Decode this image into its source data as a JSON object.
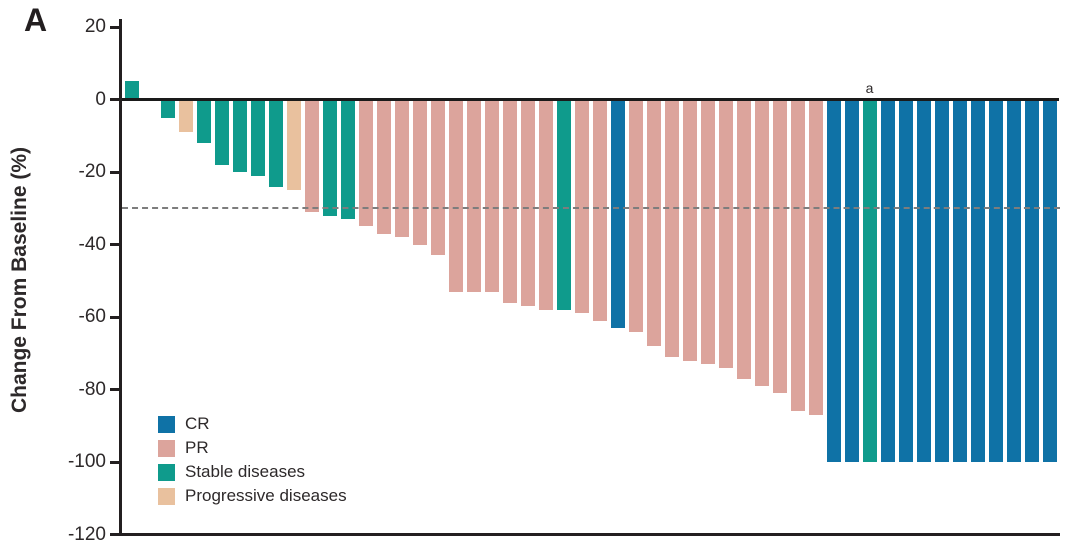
{
  "panel_label": "A",
  "chart_data": {
    "type": "bar",
    "subtype": "waterfall",
    "title": "",
    "xlabel": "",
    "ylabel": "Change From Baseline (%)",
    "ylim": [
      -120,
      20
    ],
    "yticks": [
      20,
      0,
      -20,
      -40,
      -60,
      -80,
      -100,
      -120
    ],
    "grid": false,
    "legend_position": "lower-left",
    "legend": [
      {
        "key": "CR",
        "label": "CR",
        "color": "#0f72a6"
      },
      {
        "key": "PR",
        "label": "PR",
        "color": "#dca49c"
      },
      {
        "key": "SD",
        "label": "Stable diseases",
        "color": "#0f9b8c"
      },
      {
        "key": "PD",
        "label": "Progressive diseases",
        "color": "#e9c19e"
      }
    ],
    "reference_lines": [
      {
        "y": 0,
        "style": "solid",
        "color": "#1a1a1a"
      },
      {
        "y": -30,
        "style": "dashed",
        "color": "#7d7d7d"
      }
    ],
    "annotations": [
      {
        "text": "a",
        "bar_index": 41
      }
    ],
    "bars": [
      {
        "value": 5,
        "category": "SD"
      },
      {
        "value": 0,
        "category": "SD"
      },
      {
        "value": -5,
        "category": "SD"
      },
      {
        "value": -9,
        "category": "PD"
      },
      {
        "value": -12,
        "category": "SD"
      },
      {
        "value": -18,
        "category": "SD"
      },
      {
        "value": -20,
        "category": "SD"
      },
      {
        "value": -21,
        "category": "SD"
      },
      {
        "value": -24,
        "category": "SD"
      },
      {
        "value": -25,
        "category": "PD"
      },
      {
        "value": -31,
        "category": "PR"
      },
      {
        "value": -32,
        "category": "SD"
      },
      {
        "value": -33,
        "category": "SD"
      },
      {
        "value": -35,
        "category": "PR"
      },
      {
        "value": -37,
        "category": "PR"
      },
      {
        "value": -38,
        "category": "PR"
      },
      {
        "value": -40,
        "category": "PR"
      },
      {
        "value": -43,
        "category": "PR"
      },
      {
        "value": -53,
        "category": "PR"
      },
      {
        "value": -53,
        "category": "PR"
      },
      {
        "value": -53,
        "category": "PR"
      },
      {
        "value": -56,
        "category": "PR"
      },
      {
        "value": -57,
        "category": "PR"
      },
      {
        "value": -58,
        "category": "PR"
      },
      {
        "value": -58,
        "category": "SD"
      },
      {
        "value": -59,
        "category": "PR"
      },
      {
        "value": -61,
        "category": "PR"
      },
      {
        "value": -63,
        "category": "CR"
      },
      {
        "value": -64,
        "category": "PR"
      },
      {
        "value": -68,
        "category": "PR"
      },
      {
        "value": -71,
        "category": "PR"
      },
      {
        "value": -72,
        "category": "PR"
      },
      {
        "value": -73,
        "category": "PR"
      },
      {
        "value": -74,
        "category": "PR"
      },
      {
        "value": -77,
        "category": "PR"
      },
      {
        "value": -79,
        "category": "PR"
      },
      {
        "value": -81,
        "category": "PR"
      },
      {
        "value": -86,
        "category": "PR"
      },
      {
        "value": -87,
        "category": "PR"
      },
      {
        "value": -100,
        "category": "CR"
      },
      {
        "value": -100,
        "category": "CR"
      },
      {
        "value": -100,
        "category": "SD"
      },
      {
        "value": -100,
        "category": "CR"
      },
      {
        "value": -100,
        "category": "CR"
      },
      {
        "value": -100,
        "category": "CR"
      },
      {
        "value": -100,
        "category": "CR"
      },
      {
        "value": -100,
        "category": "CR"
      },
      {
        "value": -100,
        "category": "CR"
      },
      {
        "value": -100,
        "category": "CR"
      },
      {
        "value": -100,
        "category": "CR"
      },
      {
        "value": -100,
        "category": "CR"
      },
      {
        "value": -100,
        "category": "CR"
      }
    ]
  }
}
